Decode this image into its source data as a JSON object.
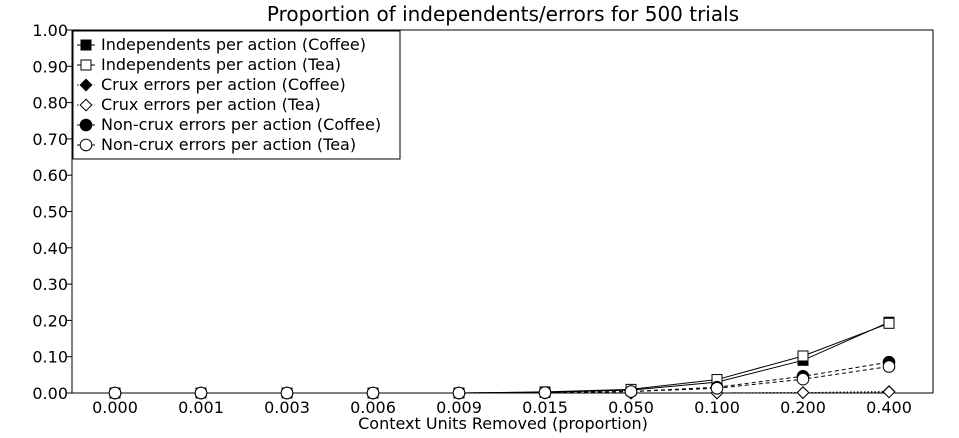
{
  "chart_data": {
    "type": "line",
    "title": "Proportion of independents/errors for 500 trials",
    "xlabel": "Context Units Removed (proportion)",
    "ylabel": "",
    "categories": [
      "0.000",
      "0.001",
      "0.003",
      "0.006",
      "0.009",
      "0.015",
      "0.050",
      "0.100",
      "0.200",
      "0.400"
    ],
    "yticks": [
      "0.00",
      "0.10",
      "0.20",
      "0.30",
      "0.40",
      "0.50",
      "0.60",
      "0.70",
      "0.80",
      "0.90",
      "1.00"
    ],
    "ylim": [
      0,
      1
    ],
    "grid": false,
    "legend_position": "top-left",
    "series": [
      {
        "name": "Independents per action (Coffee)",
        "marker": "square-filled",
        "dash": "solid",
        "values": [
          0,
          0,
          0,
          0,
          0,
          0.002,
          0.008,
          0.03,
          0.09,
          0.195
        ]
      },
      {
        "name": "Independents per action (Tea)",
        "marker": "square-open",
        "dash": "solid",
        "values": [
          0,
          0,
          0,
          0,
          0,
          0.003,
          0.01,
          0.037,
          0.102,
          0.192
        ]
      },
      {
        "name": "Crux errors per action (Coffee)",
        "marker": "diamond-filled",
        "dash": "dotted",
        "values": [
          0,
          0,
          0,
          0,
          0,
          0,
          0,
          0,
          0.001,
          0.004
        ]
      },
      {
        "name": "Crux errors per action (Tea)",
        "marker": "diamond-open",
        "dash": "dotted",
        "values": [
          0,
          0,
          0,
          0,
          0,
          0,
          0,
          0,
          0.001,
          0.003
        ]
      },
      {
        "name": "Non-crux errors per action (Coffee)",
        "marker": "circle-filled",
        "dash": "dashed",
        "values": [
          0,
          0,
          0,
          0,
          0,
          0.001,
          0.004,
          0.016,
          0.046,
          0.085
        ]
      },
      {
        "name": "Non-crux errors per action (Tea)",
        "marker": "circle-open",
        "dash": "dashed",
        "values": [
          0,
          0,
          0,
          0,
          0,
          0.001,
          0.004,
          0.013,
          0.038,
          0.073
        ]
      }
    ]
  }
}
